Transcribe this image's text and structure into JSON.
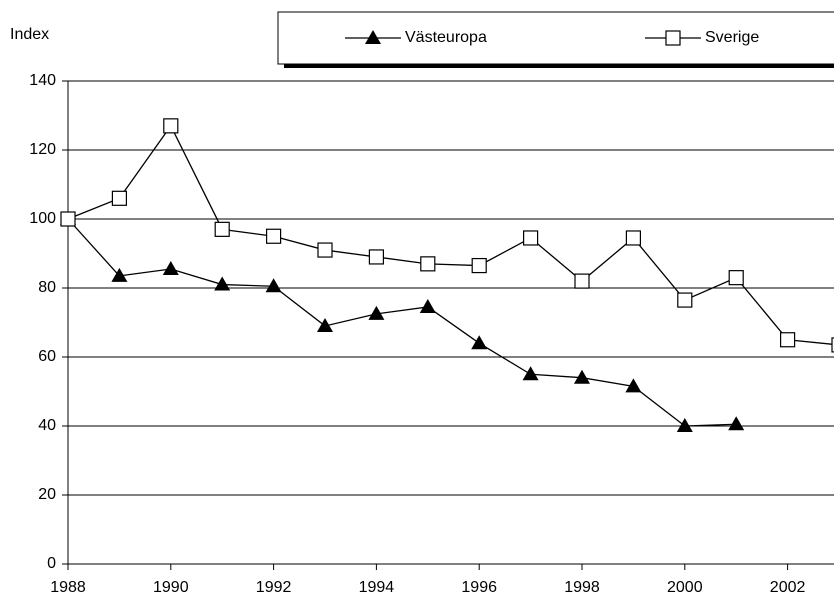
{
  "chart_data": {
    "type": "line",
    "y_label": "Index",
    "x": [
      1988,
      1989,
      1990,
      1991,
      1992,
      1993,
      1994,
      1995,
      1996,
      1997,
      1998,
      1999,
      2000,
      2001,
      2002,
      2003
    ],
    "series": [
      {
        "name": "Västeuropa",
        "color": "#000000",
        "marker": "triangle",
        "values": [
          100,
          83.5,
          85.5,
          81,
          80.5,
          69,
          72.5,
          74.5,
          64,
          55,
          54,
          51.5,
          40,
          40.5,
          null,
          null
        ]
      },
      {
        "name": "Sverige",
        "color": "#000000",
        "marker": "square",
        "values": [
          100,
          106,
          127,
          97,
          95,
          91,
          89,
          87,
          86.5,
          94.5,
          82,
          94.5,
          76.5,
          83,
          65,
          63.5
        ]
      }
    ],
    "xlim": [
      1988,
      2003
    ],
    "xticks": [
      1988,
      1990,
      1992,
      1994,
      1996,
      1998,
      2000,
      2002
    ],
    "ylim": [
      0,
      140
    ],
    "yticks": [
      0,
      20,
      40,
      60,
      80,
      100,
      120,
      140
    ],
    "grid": true,
    "legend": "top"
  }
}
